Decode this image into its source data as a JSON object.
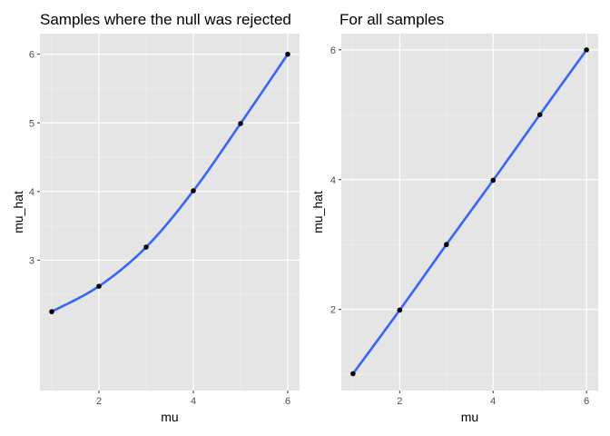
{
  "colors": {
    "panel_background": "#e5e5e5",
    "grid_major": "#ffffff",
    "grid_minor": "#f0f0f0",
    "line": "#3366ff",
    "points": "#000000",
    "tick_text": "#4d4d4d"
  },
  "chart_data": [
    {
      "type": "line",
      "title": "Samples where the null was rejected",
      "xlabel": "mu",
      "ylabel": "mu_hat",
      "xlim": [
        0.75,
        6.25
      ],
      "ylim": [
        1.1,
        6.3
      ],
      "xticks": [
        2,
        4,
        6
      ],
      "yticks": [
        3,
        4,
        5,
        6
      ],
      "grid": true,
      "smooth": true,
      "series": [
        {
          "x": [
            1,
            2,
            3,
            4,
            5,
            6
          ],
          "y": [
            2.25,
            2.62,
            3.19,
            4.01,
            4.99,
            6.0
          ]
        }
      ]
    },
    {
      "type": "line",
      "title": "For all samples",
      "xlabel": "mu",
      "ylabel": "mu_hat",
      "xlim": [
        0.75,
        6.25
      ],
      "ylim": [
        0.75,
        6.25
      ],
      "xticks": [
        2,
        4,
        6
      ],
      "yticks": [
        2,
        4,
        6
      ],
      "grid": true,
      "smooth": true,
      "series": [
        {
          "x": [
            1,
            2,
            3,
            4,
            5,
            6
          ],
          "y": [
            1.01,
            1.99,
            3.0,
            3.99,
            5.0,
            6.0
          ]
        }
      ]
    }
  ]
}
